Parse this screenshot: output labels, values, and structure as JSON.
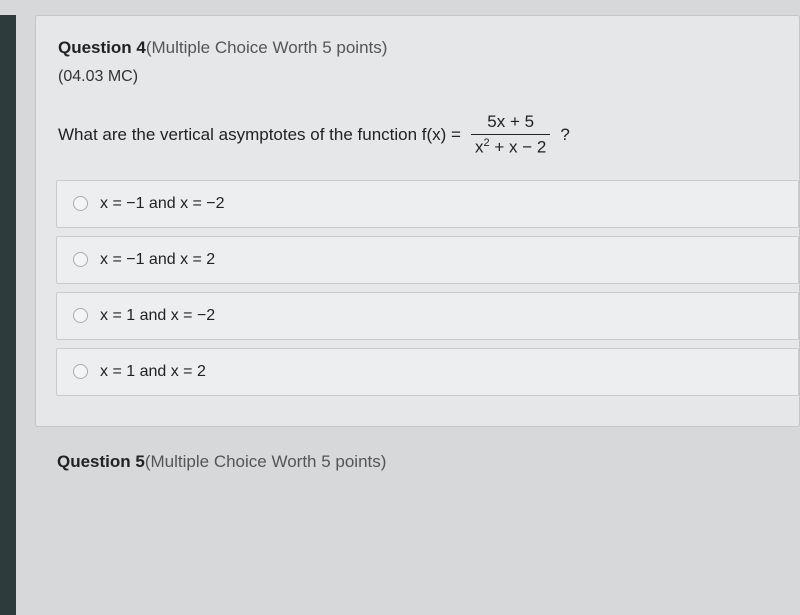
{
  "question4": {
    "header_bold": "Question 4",
    "header_light": "(Multiple Choice Worth 5 points)",
    "code": "(04.03 MC)",
    "prompt_lead": "What are the vertical asymptotes of the function f(x) =",
    "fraction_numerator": "5x + 5",
    "fraction_denom_a": "x",
    "fraction_denom_exp": "2",
    "fraction_denom_b": " + x − 2",
    "prompt_tail": " ?",
    "choices": [
      "x = −1 and x = −2",
      "x = −1 and x = 2",
      "x = 1 and x = −2",
      "x = 1 and x = 2"
    ]
  },
  "question5": {
    "header_bold": "Question 5",
    "header_light": "(Multiple Choice Worth 5 points)"
  },
  "colors": {
    "page_bg": "#d6d8da",
    "card_bg": "#e6e7e8",
    "card_border": "#c4c6c8",
    "choice_bg": "#edeeef",
    "choice_border": "#c8cacc",
    "text": "#222222",
    "text_light": "#555555",
    "radio_border": "#a8aaac"
  }
}
